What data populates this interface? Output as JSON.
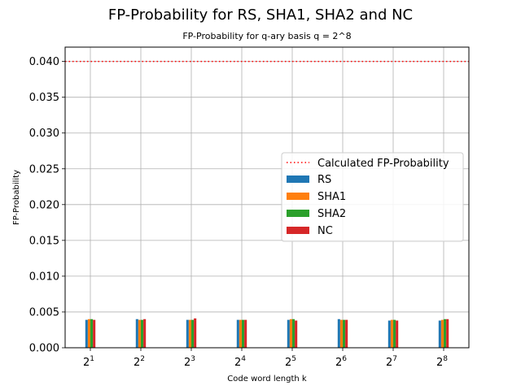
{
  "figure_title": "FP-Probability for RS, SHA1, SHA2 and NC",
  "chart_data": {
    "type": "bar",
    "title": "FP-Probability for q-ary basis q = 2^8",
    "xlabel": "Code word length k",
    "ylabel": "FP-Probability",
    "categories": [
      {
        "base": "2",
        "exp": "1"
      },
      {
        "base": "2",
        "exp": "2"
      },
      {
        "base": "2",
        "exp": "3"
      },
      {
        "base": "2",
        "exp": "4"
      },
      {
        "base": "2",
        "exp": "5"
      },
      {
        "base": "2",
        "exp": "6"
      },
      {
        "base": "2",
        "exp": "7"
      },
      {
        "base": "2",
        "exp": "8"
      }
    ],
    "ylim": [
      0,
      0.042
    ],
    "yticks": [
      "0.000",
      "0.005",
      "0.010",
      "0.015",
      "0.020",
      "0.025",
      "0.030",
      "0.035",
      "0.040"
    ],
    "grid": true,
    "reference_line": {
      "name": "Calculated FP-Probability",
      "value": 0.04,
      "color": "#ff0000",
      "style": "dotted"
    },
    "series": [
      {
        "name": "RS",
        "color": "#1f77b4",
        "values": [
          0.0039,
          0.004,
          0.0039,
          0.0039,
          0.0039,
          0.004,
          0.0038,
          0.0038
        ]
      },
      {
        "name": "SHA1",
        "color": "#ff7f0e",
        "values": [
          0.004,
          0.0039,
          0.0039,
          0.0039,
          0.004,
          0.0039,
          0.0039,
          0.0039
        ]
      },
      {
        "name": "SHA2",
        "color": "#2ca02c",
        "values": [
          0.004,
          0.0039,
          0.0039,
          0.0039,
          0.004,
          0.0039,
          0.0039,
          0.004
        ]
      },
      {
        "name": "NC",
        "color": "#d62728",
        "values": [
          0.0039,
          0.004,
          0.0041,
          0.0039,
          0.0038,
          0.0039,
          0.0038,
          0.004
        ]
      }
    ],
    "legend_position": "center-right"
  }
}
